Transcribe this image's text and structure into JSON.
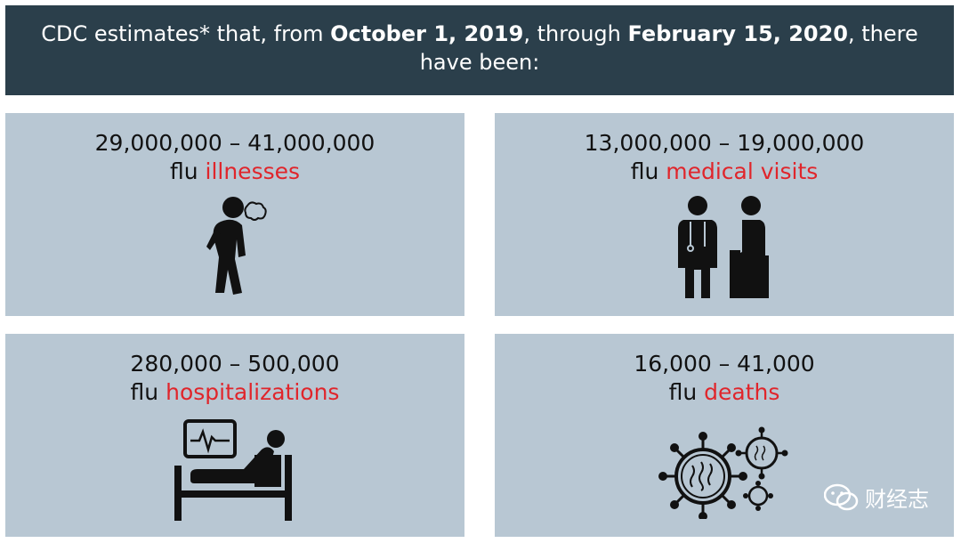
{
  "header": {
    "prefix": "CDC estimates* that, from ",
    "date_start": "October 1, 2019",
    "middle": ", through ",
    "date_end": "February 15, 2020",
    "suffix": ", there have been:"
  },
  "cards": [
    {
      "range": "29,000,000 – 41,000,000",
      "prefix": "flu ",
      "highlight": "illnesses",
      "icon": "sick-person-icon"
    },
    {
      "range": "13,000,000 – 19,000,000",
      "prefix": "flu ",
      "highlight": "medical visits",
      "icon": "doctor-patient-icon"
    },
    {
      "range": "280,000 – 500,000",
      "prefix": "flu ",
      "highlight": "hospitalizations",
      "icon": "hospital-bed-icon"
    },
    {
      "range": "16,000 – 41,000",
      "prefix": "flu ",
      "highlight": "deaths",
      "icon": "virus-icon"
    }
  ],
  "colors": {
    "header_bg": "#2b3f4b",
    "card_bg": "#b8c7d3",
    "highlight": "#e0252b"
  },
  "watermark": {
    "text": "财经志",
    "icon": "wechat-icon"
  }
}
